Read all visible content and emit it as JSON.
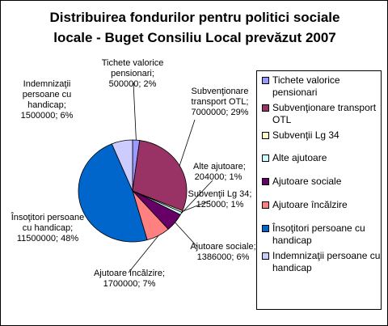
{
  "chart_data": {
    "type": "pie",
    "title": "Distribuirea fondurilor pentru politici sociale locale - Buget Consiliu Local prevăzut 2007",
    "series": [
      {
        "name": "Tichete valorice pensionari",
        "value": 500000,
        "percent": "2%",
        "color": "#9999FF"
      },
      {
        "name": "Subvenţionare transport OTL",
        "value": 7000000,
        "percent": "29%",
        "color": "#993366"
      },
      {
        "name": "Subvenţii Lg 34",
        "value": 125000,
        "percent": "1%",
        "color": "#FFFFCC"
      },
      {
        "name": "Alte ajutoare",
        "value": 204000,
        "percent": "1%",
        "color": "#CCFFFF"
      },
      {
        "name": "Ajutoare sociale",
        "value": 1386000,
        "percent": "6%",
        "color": "#660066"
      },
      {
        "name": "Ajutoare încălzire",
        "value": 1700000,
        "percent": "7%",
        "color": "#FF8080"
      },
      {
        "name": "Însoţitori persoane cu handicap",
        "value": 11500000,
        "percent": "48%",
        "color": "#0066CC"
      },
      {
        "name": "Indemnizaţii persoane cu handicap",
        "value": 1500000,
        "percent": "6%",
        "color": "#CCCCFF"
      }
    ],
    "data_labels": [
      [
        "Tichete valorice",
        "pensionari;",
        "500000; 2%"
      ],
      [
        "Subvenţionare",
        "transport OTL;",
        "7000000; 29%"
      ],
      [
        "Subvenţii Lg 34;",
        "125000; 1%"
      ],
      [
        "Alte ajutoare;",
        "204000; 1%"
      ],
      [
        "Ajutoare sociale;",
        "1386000; 6%"
      ],
      [
        "Ajutoare încălzire;",
        "1700000; 7%"
      ],
      [
        "Însoţitori persoane",
        "cu handicap;",
        "11500000; 48%"
      ],
      [
        "Indemnizaţii",
        "persoane cu",
        "handicap;",
        "1500000; 6%"
      ]
    ],
    "legend_placement": "right"
  },
  "legend": {
    "items": [
      "Tichete valorice pensionari",
      "Subvenţionare transport OTL",
      "Subvenţii Lg 34",
      "Alte ajutoare",
      "Ajutoare sociale",
      "Ajutoare încălzire",
      "Însoţitori persoane cu handicap",
      "Indemnizaţii persoane cu handicap"
    ]
  }
}
